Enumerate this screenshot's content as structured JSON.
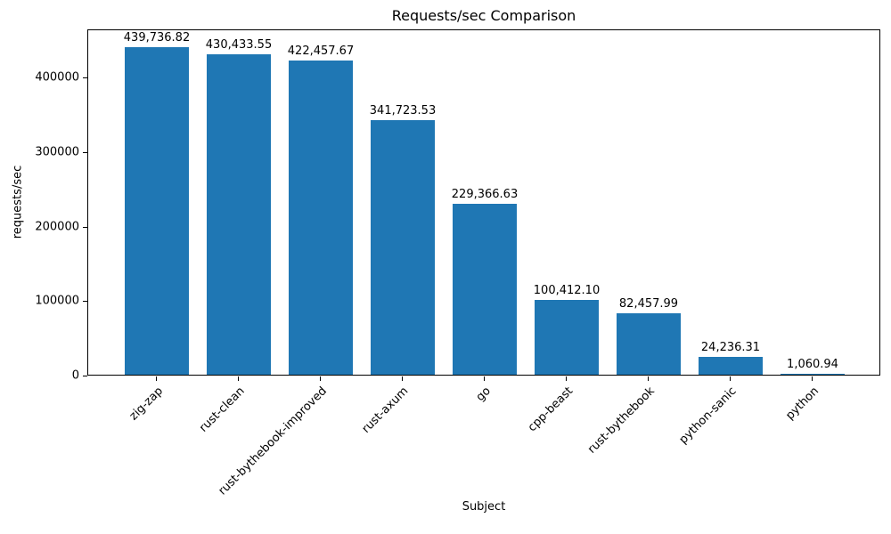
{
  "chart_data": {
    "type": "bar",
    "title": "Requests/sec Comparison",
    "xlabel": "Subject",
    "ylabel": "requests/sec",
    "categories": [
      "zig-zap",
      "rust-clean",
      "rust-bythebook-improved",
      "rust-axum",
      "go",
      "cpp-beast",
      "rust-bythebook",
      "python-sanic",
      "python"
    ],
    "values": [
      439736.82,
      430433.55,
      422457.67,
      341723.53,
      229366.63,
      100412.1,
      82457.99,
      24236.31,
      1060.94
    ],
    "bar_value_labels": [
      "439,736.82",
      "430,433.55",
      "422,457.67",
      "341,723.53",
      "229,366.63",
      "100,412.10",
      "82,457.99",
      "24,236.31",
      "1,060.94"
    ],
    "yticks": [
      0,
      100000,
      200000,
      300000,
      400000
    ],
    "ytick_labels": [
      "0",
      "100000",
      "200000",
      "300000",
      "400000"
    ],
    "ylim": [
      0,
      465000
    ],
    "xtick_rotation_deg": 45,
    "bar_color": "#1f77b4",
    "grid": false,
    "legend_position": "none"
  }
}
